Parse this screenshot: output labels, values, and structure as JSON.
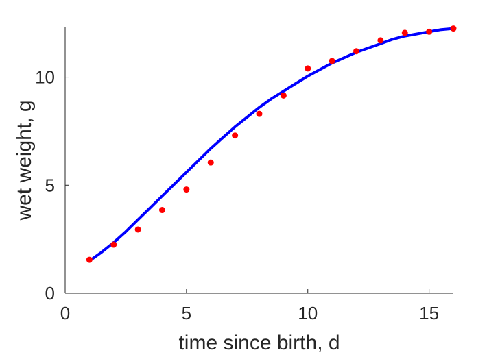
{
  "chart_data": {
    "type": "scatter",
    "title": "",
    "xlabel": "time since birth, d",
    "ylabel": "wet weight, g",
    "xlim": [
      0,
      16
    ],
    "ylim": [
      0,
      12.3
    ],
    "xticks": [
      0,
      5,
      10,
      15
    ],
    "yticks": [
      0,
      5,
      10
    ],
    "xtick_labels": [
      "0",
      "5",
      "10",
      "15"
    ],
    "ytick_labels": [
      "0",
      "5",
      "10"
    ],
    "grid": false,
    "legend": "none",
    "colors": {
      "points": "#ff0000",
      "fit": "#0000ff",
      "axes": "#262626"
    },
    "series": [
      {
        "kind": "scatter",
        "x": [
          1,
          2,
          3,
          4,
          5,
          6,
          7,
          8,
          9,
          10,
          11,
          12,
          13,
          14,
          15,
          16
        ],
        "y": [
          1.55,
          2.25,
          2.95,
          3.85,
          4.8,
          6.05,
          7.3,
          8.3,
          9.15,
          10.4,
          10.75,
          11.2,
          11.7,
          12.05,
          12.1,
          12.25
        ]
      },
      {
        "kind": "line",
        "x": [
          1,
          1.5,
          2,
          2.5,
          3,
          3.5,
          4,
          4.5,
          5,
          5.5,
          6,
          6.5,
          7,
          7.5,
          8,
          8.5,
          9,
          9.5,
          10,
          10.5,
          11,
          11.5,
          12,
          12.5,
          13,
          13.5,
          14,
          14.5,
          15,
          15.5,
          16
        ],
        "y": [
          1.5,
          1.9,
          2.35,
          2.85,
          3.4,
          3.95,
          4.5,
          5.05,
          5.6,
          6.15,
          6.7,
          7.2,
          7.7,
          8.15,
          8.6,
          9.0,
          9.35,
          9.7,
          10.05,
          10.35,
          10.65,
          10.9,
          11.15,
          11.35,
          11.55,
          11.75,
          11.9,
          12.0,
          12.1,
          12.2,
          12.25
        ]
      }
    ]
  }
}
